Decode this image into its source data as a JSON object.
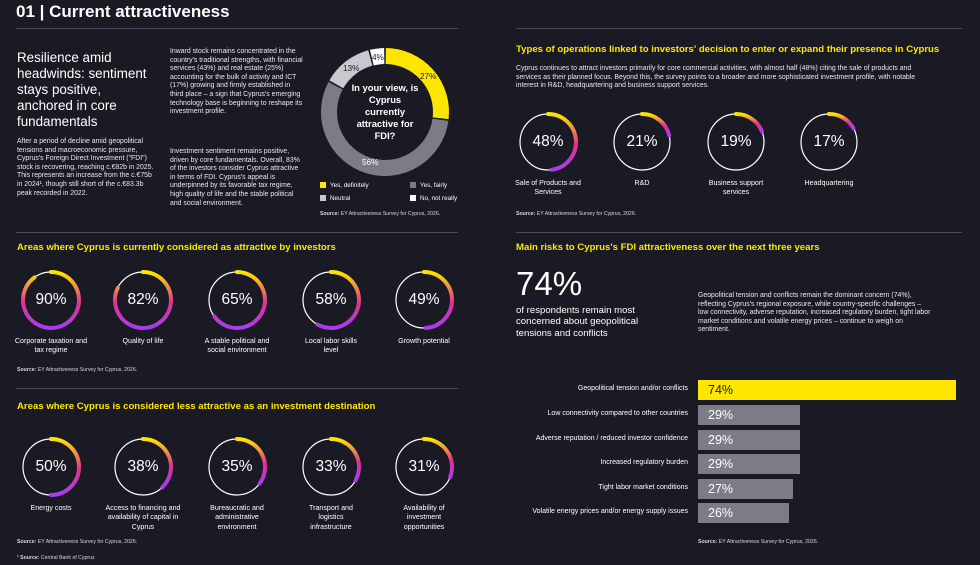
{
  "page": {
    "title": "01 | Current attractiveness"
  },
  "colors": {
    "background": "#1a1a24",
    "accent_yellow": "#ffe600",
    "grey": "#7c7c86",
    "ring_gradient_end": "#a83cf0",
    "ring_gradient_mid": "#e2318f"
  },
  "intro": {
    "headline": "Resilience amid headwinds: sentiment stays positive, anchored in core fundamentals",
    "body": "After a period of decline amid geopolitical tensions and macroeconomic pressure, Cyprus's Foreign Direct Investment (\"FDI\") stock is recovering, reaching c.€82b in 2025. This represents an increase from the c.€75b in 2024¹, though still short of the c.€83.3b peak recorded in 2022.",
    "col2_p1": "Inward stock remains concentrated in the country's traditional strengths, with financial services (43%) and real estate (25%) accounting for the bulk of activity and ICT (17%) growing and firmly established in third place – a sign that Cyprus's emerging technology base is beginning to reshape its investment profile.",
    "col2_p2": "Investment sentiment remains positive, driven by core fundamentals. Overall, 83% of the investors consider Cyprus attractive in terms of FDI. Cyprus's appeal is underpinned by its favorable tax regime, high quality of life and the stable political and social environment."
  },
  "donut": {
    "center_text": "In your view, is Cyprus currently attractive for FDI?",
    "labels": {
      "yes_definitely": "27%",
      "yes_fairly": "56%",
      "neutral": "13%",
      "no": "4%"
    },
    "legend": {
      "yes_definitely": "Yes, definitely",
      "yes_fairly": "Yes, fairly",
      "neutral": "Neutral",
      "no": "No, not really"
    },
    "source_bold": "Source:",
    "source_text": " EY Attractiveness Survey for Cyprus, 2026."
  },
  "chart_data": [
    {
      "type": "pie",
      "categories": [
        "Yes, definitely",
        "Yes, fairly",
        "Neutral",
        "No, not really"
      ],
      "values": [
        27,
        56,
        13,
        4
      ],
      "colors": [
        "#ffe600",
        "#7c7c86",
        "#c8c8ce",
        "#ffffff"
      ]
    },
    {
      "type": "bar",
      "categories": [
        "Geopolitical tension and/or conflicts",
        "Low connectivity compared to other countries",
        "Adverse reputation / reduced investor confidence",
        "Increased regulatory burden",
        "Tight labor market conditions",
        "Volatile energy prices and/or energy supply issues"
      ],
      "values": [
        74,
        29,
        29,
        29,
        27,
        26
      ],
      "xlim": [
        0,
        100
      ]
    }
  ],
  "attractive": {
    "heading": "Areas where Cyprus is currently considered as attractive by investors",
    "items": [
      {
        "pct": "90%",
        "value": 90,
        "label": "Corporate taxation and tax regime"
      },
      {
        "pct": "82%",
        "value": 82,
        "label": "Quality of life"
      },
      {
        "pct": "65%",
        "value": 65,
        "label": "A stable political and social environment"
      },
      {
        "pct": "58%",
        "value": 58,
        "label": "Local labor skills level"
      },
      {
        "pct": "49%",
        "value": 49,
        "label": "Growth potential"
      }
    ],
    "source_bold": "Source:",
    "source_text": " EY Attractiveness Survey for Cyprus, 2026."
  },
  "less_attractive": {
    "heading": "Areas where Cyprus is considered less attractive as an investment destination",
    "items": [
      {
        "pct": "50%",
        "value": 50,
        "label": "Energy costs"
      },
      {
        "pct": "38%",
        "value": 38,
        "label": "Access to financing and availability of capital in Cyprus"
      },
      {
        "pct": "35%",
        "value": 35,
        "label": "Bureaucratic and administrative environment"
      },
      {
        "pct": "33%",
        "value": 33,
        "label": "Transport and logistics infrastructure"
      },
      {
        "pct": "31%",
        "value": 31,
        "label": "Availability of investment opportunities"
      }
    ],
    "source_bold": "Source:",
    "source_text": " EY Attractiveness Survey for Cyprus, 2026.",
    "footnote_bold": "¹ Source:",
    "footnote_text": " Central Bank of Cyprus"
  },
  "operations": {
    "heading": "Types of operations linked to investors' decision to enter or expand their presence in Cyprus",
    "body": "Cyprus continues to attract investors primarily for core commercial activities, with almost half (48%) citing the sale of products and services as their planned focus. Beyond this, the survey points to a broader and more sophisticated investment profile, with notable interest in R&D, headquartering and business support services.",
    "items": [
      {
        "pct": "48%",
        "value": 48,
        "label": "Sale of Products and Services"
      },
      {
        "pct": "21%",
        "value": 21,
        "label": "R&D"
      },
      {
        "pct": "19%",
        "value": 19,
        "label": "Business support services"
      },
      {
        "pct": "17%",
        "value": 17,
        "label": "Headquartering"
      }
    ],
    "source_bold": "Source:",
    "source_text": " EY Attractiveness Survey for Cyprus, 2026."
  },
  "risks": {
    "heading": "Main risks to Cyprus's FDI attractiveness over the next three years",
    "big_number": "74%",
    "big_text": "of respondents remain most concerned about geopolitical tensions and conflicts",
    "body": "Geopolitical tension and conflicts remain the dominant concern (74%), reflecting Cyprus's regional exposure, while country-specific challenges – low connectivity, adverse reputation, increased regulatory burden, tight labor market conditions and volatile energy prices – continue to weigh on sentiment.",
    "bars": [
      {
        "label": "Geopolitical tension and/or conflicts",
        "pct": "74%"
      },
      {
        "label": "Low connectivity compared to other countries",
        "pct": "29%"
      },
      {
        "label": "Adverse reputation / reduced investor confidence",
        "pct": "29%"
      },
      {
        "label": "Increased regulatory burden",
        "pct": "29%"
      },
      {
        "label": "Tight labor market conditions",
        "pct": "27%"
      },
      {
        "label": "Volatile energy prices and/or energy supply issues",
        "pct": "26%"
      }
    ],
    "source_bold": "Source:",
    "source_text": " EY Attractiveness Survey for Cyprus, 2026."
  }
}
